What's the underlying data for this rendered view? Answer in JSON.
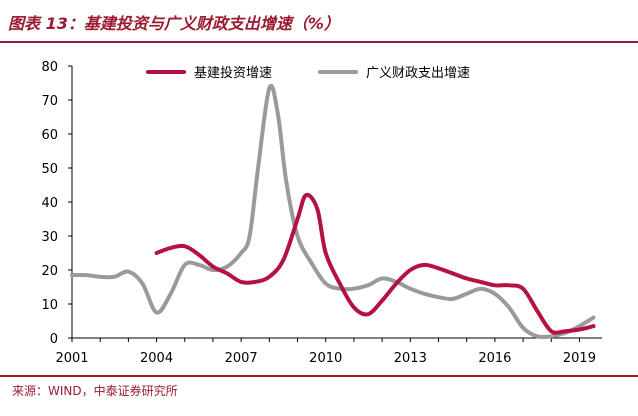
{
  "figure_title": "图表 13：基建投资与广义财政支出增速（%）",
  "source": "来源：WIND，中泰证券研究所",
  "chart_data": {
    "type": "line",
    "title": "",
    "xlabel": "",
    "ylabel": "",
    "ylim": [
      0,
      80
    ],
    "xlim": [
      2001,
      2019.8
    ],
    "x_ticks": [
      "2001",
      "2004",
      "2007",
      "2010",
      "2013",
      "2016",
      "2019"
    ],
    "y_ticks": [
      "0",
      "10",
      "20",
      "30",
      "40",
      "50",
      "60",
      "70",
      "80"
    ],
    "legend_position": "top",
    "grid": false,
    "series": [
      {
        "name": "基建投资增速",
        "color": "#b5133f",
        "x": [
          2004,
          2004.5,
          2005,
          2005.5,
          2006,
          2006.5,
          2007,
          2007.5,
          2008,
          2008.5,
          2009,
          2009.3,
          2009.7,
          2010,
          2010.5,
          2011,
          2011.5,
          2012,
          2012.5,
          2013,
          2013.5,
          2014,
          2014.5,
          2015,
          2015.5,
          2016,
          2016.5,
          2017,
          2017.5,
          2018,
          2018.5,
          2019,
          2019.5
        ],
        "y": [
          25,
          26.5,
          27,
          24.5,
          21,
          19,
          16.5,
          16.5,
          18,
          23,
          35,
          42,
          38,
          25,
          16,
          9,
          7,
          11,
          16,
          20,
          21.5,
          20.5,
          19,
          17.5,
          16.5,
          15.5,
          15.5,
          14.5,
          8,
          2,
          2,
          2.5,
          3.5
        ]
      },
      {
        "name": "广义财政支出增速",
        "color": "#9a9a9a",
        "x": [
          2001,
          2001.5,
          2002,
          2002.5,
          2003,
          2003.5,
          2004,
          2004.5,
          2005,
          2005.5,
          2006,
          2006.5,
          2007,
          2007.3,
          2007.6,
          2008,
          2008.3,
          2008.6,
          2009,
          2009.5,
          2010,
          2010.5,
          2011,
          2011.5,
          2012,
          2012.5,
          2013,
          2013.5,
          2014,
          2014.5,
          2015,
          2015.5,
          2016,
          2016.5,
          2017,
          2017.5,
          2018,
          2018.5,
          2019,
          2019.5
        ],
        "y": [
          18.5,
          18.5,
          18,
          18,
          19.5,
          16,
          7.5,
          13,
          21.5,
          21.5,
          20,
          21,
          25,
          30,
          50,
          73.5,
          66,
          46,
          30,
          22,
          16,
          14.5,
          14.5,
          15.5,
          17.5,
          16.5,
          14.5,
          13,
          12,
          11.5,
          13,
          14.5,
          13,
          9,
          3,
          0.5,
          0.5,
          1.5,
          3.5,
          6
        ]
      }
    ]
  }
}
